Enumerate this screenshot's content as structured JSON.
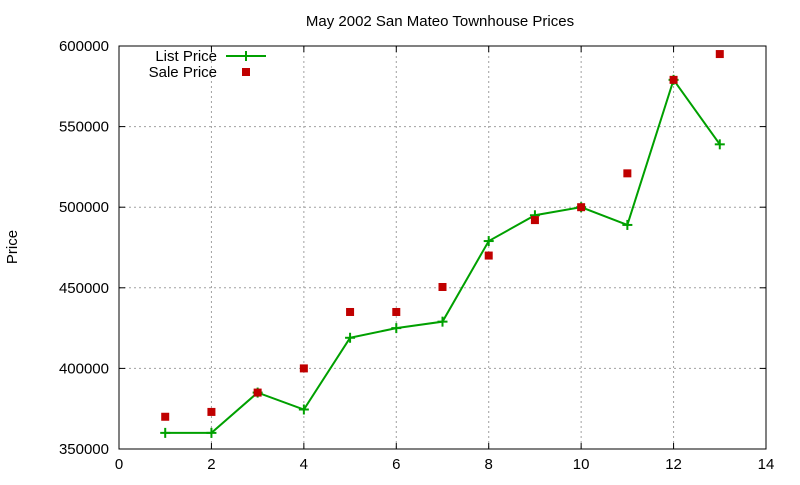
{
  "chart_data": {
    "type": "line",
    "title": "May 2002 San Mateo Townhouse Prices",
    "xlabel": "",
    "ylabel": "Price",
    "xlim": [
      0,
      14
    ],
    "ylim": [
      350000,
      600000
    ],
    "xticks": [
      0,
      2,
      4,
      6,
      8,
      10,
      12,
      14
    ],
    "yticks": [
      350000,
      400000,
      450000,
      500000,
      550000,
      600000
    ],
    "grid": true,
    "legend_position": "top-left",
    "series": [
      {
        "name": "List Price",
        "style": "line+plus-markers",
        "color": "#00a000",
        "x": [
          1,
          2,
          3,
          4,
          5,
          6,
          7,
          8,
          9,
          10,
          11,
          12,
          13
        ],
        "y": [
          360000,
          360000,
          385000,
          374500,
          419000,
          425000,
          429000,
          479000,
          495000,
          500000,
          489000,
          579000,
          539000
        ]
      },
      {
        "name": "Sale Price",
        "style": "square-markers",
        "color": "#c00000",
        "x": [
          1,
          2,
          3,
          4,
          5,
          6,
          7,
          8,
          9,
          10,
          11,
          12,
          13
        ],
        "y": [
          370000,
          373000,
          385000,
          400000,
          435000,
          435000,
          450500,
          470000,
          492000,
          500000,
          521000,
          579000,
          595000
        ]
      }
    ]
  }
}
